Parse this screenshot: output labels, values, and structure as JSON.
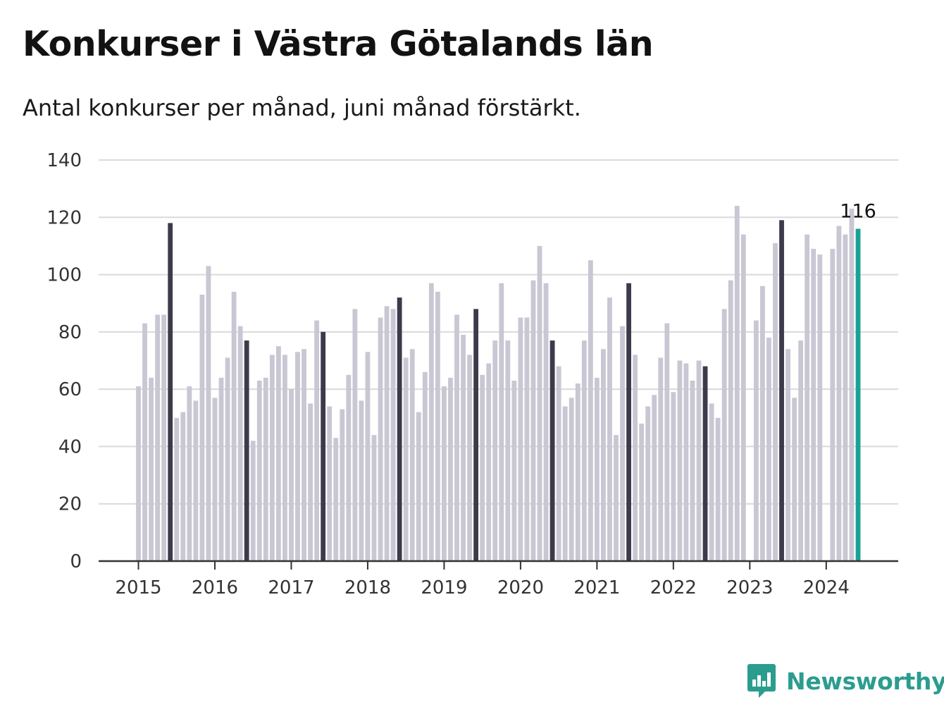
{
  "header": {
    "title": "Konkurser i Västra Götalands län",
    "subtitle": "Antal konkurser per månad, juni månad förstärkt."
  },
  "brand": {
    "name": "Newsworthy",
    "icon": "chat-bar-chart-icon",
    "color": "#2a9d8f"
  },
  "colors": {
    "normal": "#c8c7d3",
    "june": "#3d3a4b",
    "latest": "#1aa197",
    "grid": "#dadada",
    "axis": "#333333"
  },
  "chart_data": {
    "type": "bar",
    "title": "Konkurser i Västra Götalands län",
    "subtitle": "Antal konkurser per månad, juni månad förstärkt.",
    "xlabel": "",
    "ylabel": "",
    "ylim": [
      0,
      140
    ],
    "yticks": [
      0,
      20,
      40,
      60,
      80,
      100,
      120,
      140
    ],
    "xticks": [
      "2015",
      "2016",
      "2017",
      "2018",
      "2019",
      "2020",
      "2021",
      "2022",
      "2023",
      "2024"
    ],
    "grid": true,
    "start": "2015-01",
    "highlight_month": "06",
    "annotation": {
      "month": "2024-06",
      "text": "116"
    },
    "values": [
      61,
      83,
      64,
      86,
      86,
      118,
      50,
      52,
      61,
      56,
      93,
      103,
      57,
      64,
      71,
      94,
      82,
      77,
      42,
      63,
      64,
      72,
      75,
      72,
      60,
      73,
      74,
      55,
      84,
      80,
      54,
      43,
      53,
      65,
      88,
      56,
      73,
      44,
      85,
      89,
      88,
      92,
      71,
      74,
      52,
      66,
      97,
      94,
      61,
      64,
      86,
      79,
      72,
      88,
      65,
      69,
      77,
      97,
      77,
      63,
      85,
      85,
      98,
      110,
      97,
      77,
      68,
      54,
      57,
      62,
      77,
      105,
      64,
      74,
      92,
      44,
      82,
      97,
      72,
      48,
      54,
      58,
      71,
      83,
      59,
      70,
      69,
      63,
      70,
      68,
      55,
      50,
      88,
      98,
      124,
      114,
      null,
      84,
      96,
      78,
      111,
      119,
      74,
      57,
      77,
      114,
      109,
      107,
      null,
      109,
      117,
      114,
      123,
      116
    ]
  }
}
